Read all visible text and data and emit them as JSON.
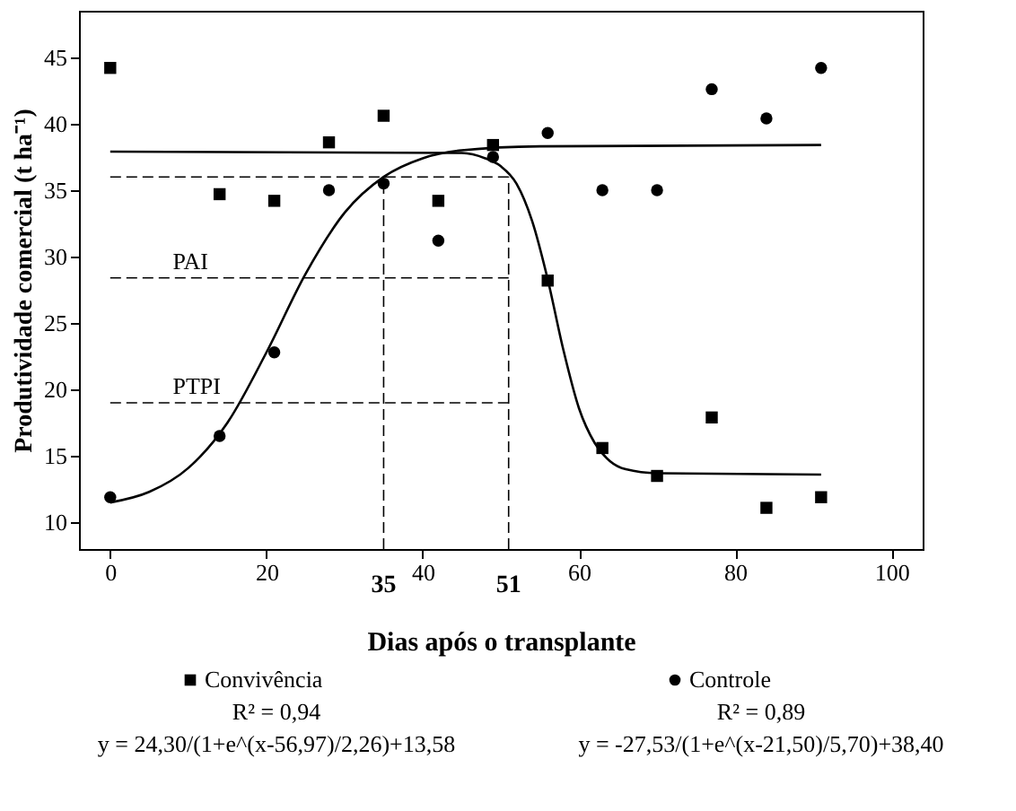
{
  "chart_data": {
    "type": "scatter",
    "xlabel": "Dias após o transplante",
    "ylabel": "Produtividade comercial (t ha⁻¹)",
    "xlim": [
      -4,
      104
    ],
    "ylim": [
      8,
      48.5
    ],
    "xticks": [
      0,
      20,
      40,
      60,
      80,
      100
    ],
    "yticks": [
      10,
      15,
      20,
      25,
      30,
      35,
      40,
      45
    ],
    "grid": false,
    "legend": "bottom",
    "series": [
      {
        "name": "Convivência",
        "marker": "square",
        "color": "#000000",
        "x": [
          0,
          14,
          21,
          28,
          35,
          42,
          49,
          56,
          63,
          70,
          77,
          84,
          91
        ],
        "values": [
          44.2,
          34.7,
          34.2,
          38.6,
          40.6,
          34.2,
          38.4,
          28.2,
          15.6,
          13.5,
          17.9,
          11.1,
          11.9
        ]
      },
      {
        "name": "Controle",
        "marker": "circle",
        "color": "#000000",
        "x": [
          0,
          14,
          21,
          28,
          35,
          42,
          49,
          56,
          63,
          70,
          77,
          84,
          91
        ],
        "values": [
          11.9,
          16.5,
          22.8,
          35.0,
          35.5,
          31.2,
          37.5,
          39.3,
          35.0,
          35.0,
          42.6,
          40.4,
          44.2
        ]
      },
      {
        "type": "line",
        "marker": "none",
        "color": "#000000",
        "x": [
          0,
          45,
          48,
          50,
          52,
          54,
          56,
          58,
          60,
          62,
          64,
          66,
          70,
          91
        ],
        "values": [
          37.9,
          37.8,
          37.4,
          36.8,
          35.5,
          32.7,
          28.3,
          23.0,
          18.6,
          16.0,
          14.6,
          14.0,
          13.7,
          13.6
        ]
      },
      {
        "type": "line",
        "marker": "none",
        "color": "#000000",
        "x": [
          0,
          5,
          10,
          15,
          20,
          25,
          30,
          35,
          40,
          45,
          55,
          91
        ],
        "values": [
          11.5,
          12.3,
          14.1,
          17.5,
          22.8,
          28.7,
          33.3,
          36.0,
          37.4,
          38.0,
          38.3,
          38.4
        ]
      }
    ],
    "ref_lines": [
      {
        "axis": "x",
        "value": 35,
        "label": "35",
        "line_style": "dashed"
      },
      {
        "axis": "x",
        "value": 51,
        "label": "51",
        "line_style": "dashed"
      },
      {
        "axis": "y",
        "value": 36,
        "line_style": "dashed"
      },
      {
        "axis": "y",
        "value": 28.4,
        "label": "PAI",
        "line_style": "dashed"
      },
      {
        "axis": "y",
        "value": 19,
        "label": "PTPI",
        "line_style": "dashed"
      }
    ],
    "annotations": [
      "R² = 0,94",
      "y = 24,30/(1+e^(x-56,97)/2,26)+13,58",
      "R² = 0,89",
      "y = -27,53/(1+e^(x-21,50)/5,70)+38,40"
    ]
  }
}
